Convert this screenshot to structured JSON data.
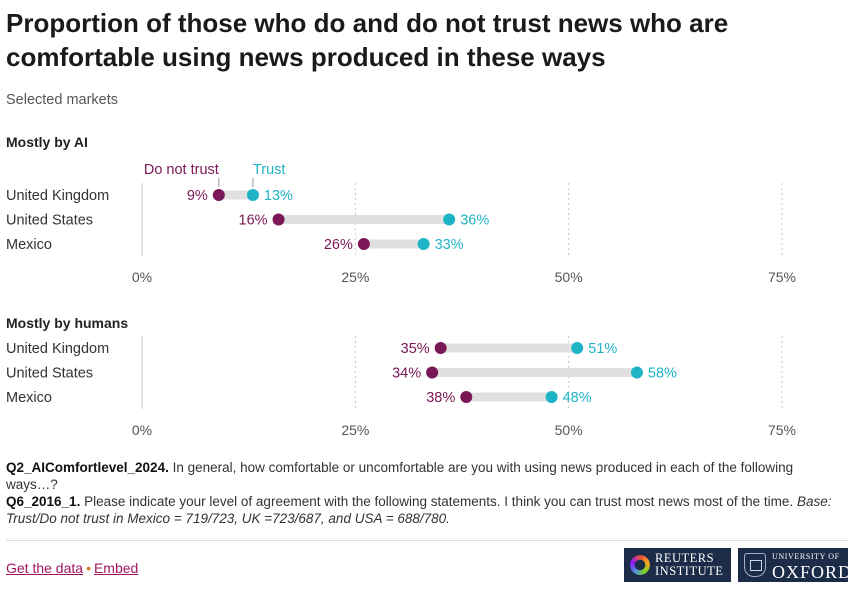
{
  "title": "Proportion of those who do and do not trust news who are comfortable using news produced in these ways",
  "subtitle": "Selected markets",
  "colors": {
    "not_trust": "#7a1756",
    "trust": "#1fb3c6",
    "connector": "#e0e0e0",
    "axis": "#c8c8c8"
  },
  "chart_data": [
    {
      "type": "dot-range",
      "title": "Mostly by AI",
      "categories": [
        "United Kingdom",
        "United States",
        "Mexico"
      ],
      "series": [
        {
          "name": "Do not trust",
          "values": [
            9,
            16,
            26
          ]
        },
        {
          "name": "Trust",
          "values": [
            13,
            36,
            33
          ]
        }
      ],
      "value_suffix": "%",
      "xlim": [
        0,
        80
      ],
      "xticks": [
        0,
        25,
        50,
        75
      ],
      "xtick_labels": [
        "0%",
        "25%",
        "50%",
        "75%"
      ],
      "grid": true,
      "legend": "inline above first row"
    },
    {
      "type": "dot-range",
      "title": "Mostly by humans",
      "categories": [
        "United Kingdom",
        "United States",
        "Mexico"
      ],
      "series": [
        {
          "name": "Do not trust",
          "values": [
            35,
            34,
            38
          ]
        },
        {
          "name": "Trust",
          "values": [
            51,
            58,
            48
          ]
        }
      ],
      "value_suffix": "%",
      "xlim": [
        0,
        80
      ],
      "xticks": [
        0,
        25,
        50,
        75
      ],
      "xtick_labels": [
        "0%",
        "25%",
        "50%",
        "75%"
      ],
      "grid": true,
      "legend": "none"
    }
  ],
  "notes": {
    "q1_code": "Q2_AIComfortlevel_2024.",
    "q1_text": " In general, how comfortable or uncomfortable are you with using news produced in each of the following ways…?",
    "q2_code": "Q6_2016_1.",
    "q2_text": " Please indicate your level of agreement with the following statements. I think you can trust most news most of the time. ",
    "base": "Base: Trust/Do not trust in Mexico = 719/723, UK =723/687, and USA = 688/780."
  },
  "footer": {
    "get_data": "Get the data",
    "separator": "•",
    "embed": "Embed",
    "logo_reuters_line1": "REUTERS",
    "logo_reuters_line2": "INSTITUTE",
    "logo_oxford_line1": "UNIVERSITY OF",
    "logo_oxford_line2": "OXFORD"
  }
}
